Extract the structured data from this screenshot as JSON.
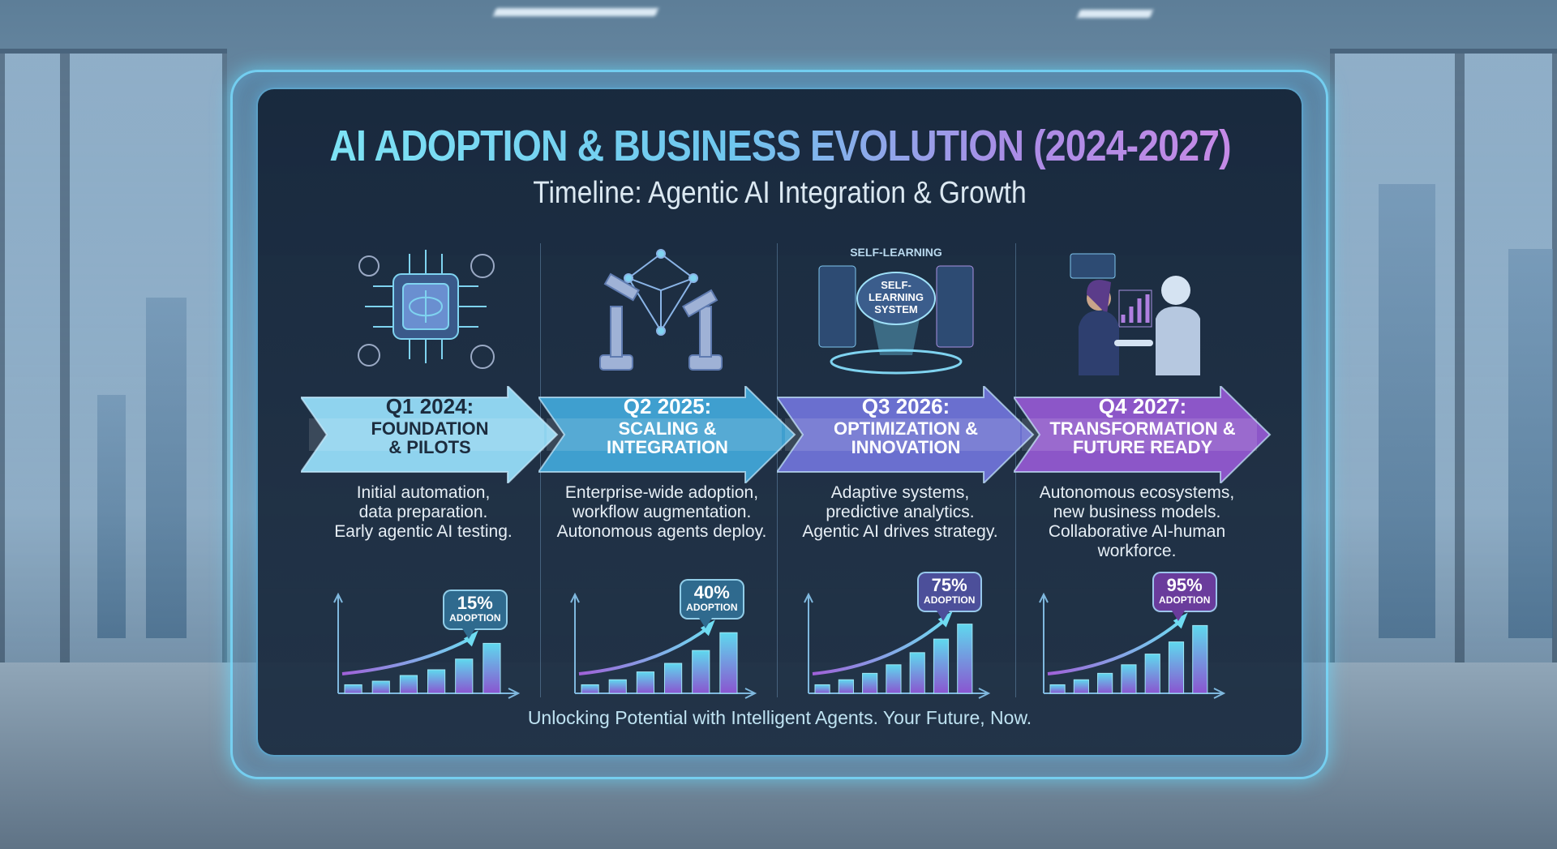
{
  "title": "AI ADOPTION & BUSINESS EVOLUTION (2024-2027):",
  "subtitle": "Timeline: Agentic AI Integration & Growth",
  "footer": "Unlocking Potential with Intelligent Agents. Your Future, Now.",
  "illustration_labels": {
    "heading": "SELF-LEARNING",
    "cloud": [
      "SELF-",
      "LEARNING",
      "SYSTEM"
    ]
  },
  "phases": [
    {
      "quarter": "Q1 2024:",
      "name": [
        "FOUNDATION",
        "& PILOTS"
      ],
      "description": [
        "Initial automation,",
        "data preparation.",
        "Early agentic AI testing."
      ],
      "adoption": "15%",
      "adoption_label": "ADOPTION",
      "color": "#8fd3ee",
      "text_color": "#1c2c3e",
      "icon": "brain-chip-gears-icon",
      "bar_levels": [
        0.12,
        0.17,
        0.25,
        0.33,
        0.48,
        0.7
      ]
    },
    {
      "quarter": "Q2 2025:",
      "name": [
        "SCALING &",
        "INTEGRATION"
      ],
      "description": [
        "Enterprise-wide adoption,",
        "workflow augmentation.",
        "Autonomous agents deploy."
      ],
      "adoption": "40%",
      "adoption_label": "ADOPTION",
      "color": "#3f9fcf",
      "text_color": "#ffffff",
      "icon": "robot-arms-network-icon",
      "bar_levels": [
        0.12,
        0.19,
        0.3,
        0.42,
        0.6,
        0.85
      ]
    },
    {
      "quarter": "Q3 2026:",
      "name": [
        "OPTIMIZATION &",
        "INNOVATION"
      ],
      "description": [
        "Adaptive systems,",
        "predictive analytics.",
        "Agentic AI drives strategy."
      ],
      "adoption": "75%",
      "adoption_label": "ADOPTION",
      "color": "#6a6fcf",
      "text_color": "#ffffff",
      "icon": "self-learning-system-icon",
      "bar_levels": [
        0.12,
        0.19,
        0.28,
        0.4,
        0.57,
        0.76,
        0.97
      ]
    },
    {
      "quarter": "Q4 2027:",
      "name": [
        "TRANSFORMATION &",
        "FUTURE READY"
      ],
      "description": [
        "Autonomous ecosystems,",
        "new business models.",
        "Collaborative AI-human",
        "workforce."
      ],
      "adoption": "95%",
      "adoption_label": "ADOPTION",
      "color": "#8c56c8",
      "text_color": "#ffffff",
      "icon": "human-robot-handshake-icon",
      "bar_levels": [
        0.12,
        0.19,
        0.28,
        0.4,
        0.55,
        0.72,
        0.95
      ]
    }
  ]
}
